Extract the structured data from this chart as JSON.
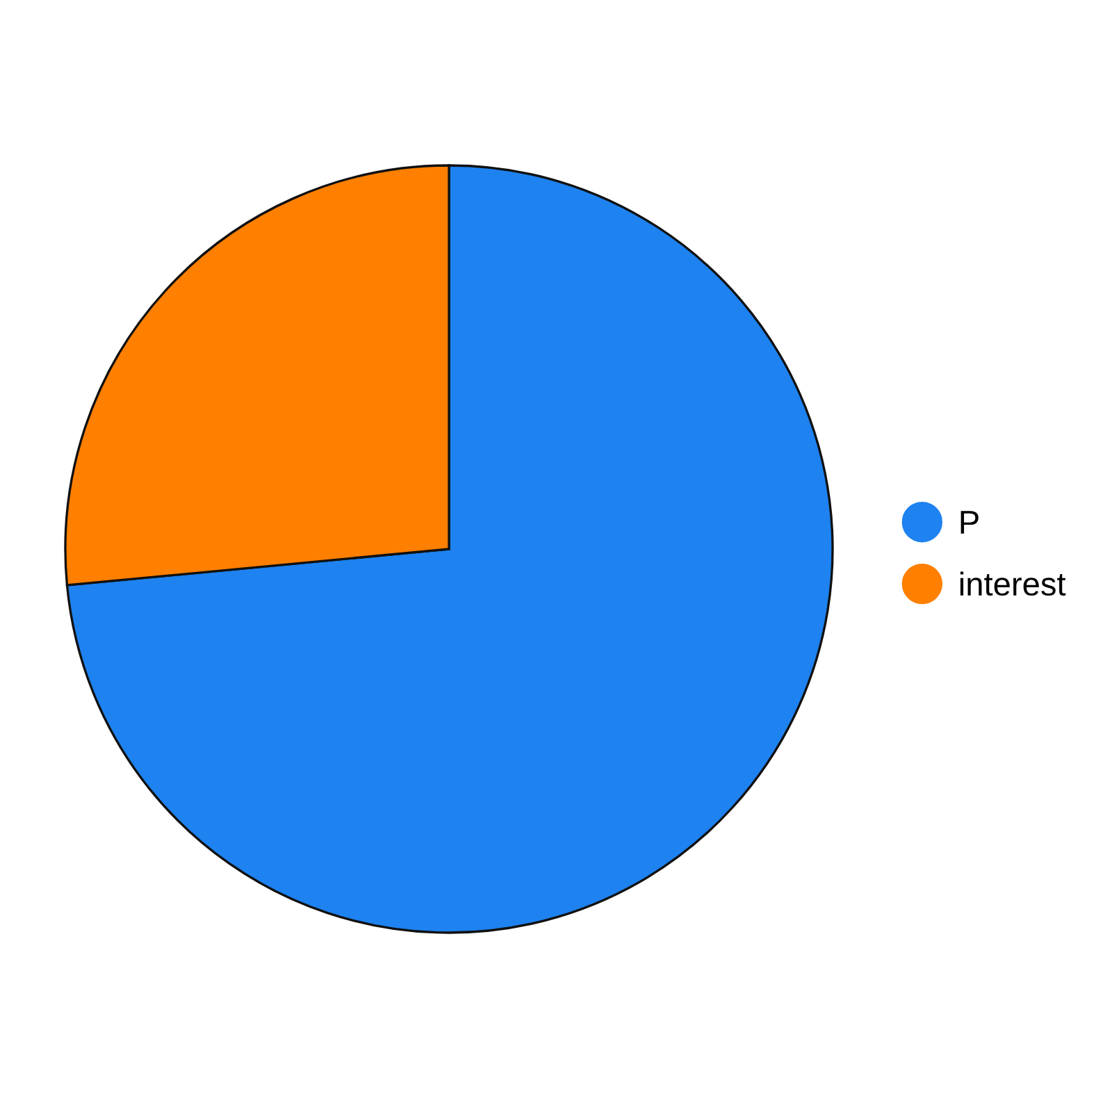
{
  "chart_data": {
    "type": "pie",
    "categories": [
      "P",
      "interest"
    ],
    "values": [
      73.5,
      26.5
    ],
    "colors": [
      "#1e82f0",
      "#ff7f00"
    ],
    "legend": "right"
  }
}
